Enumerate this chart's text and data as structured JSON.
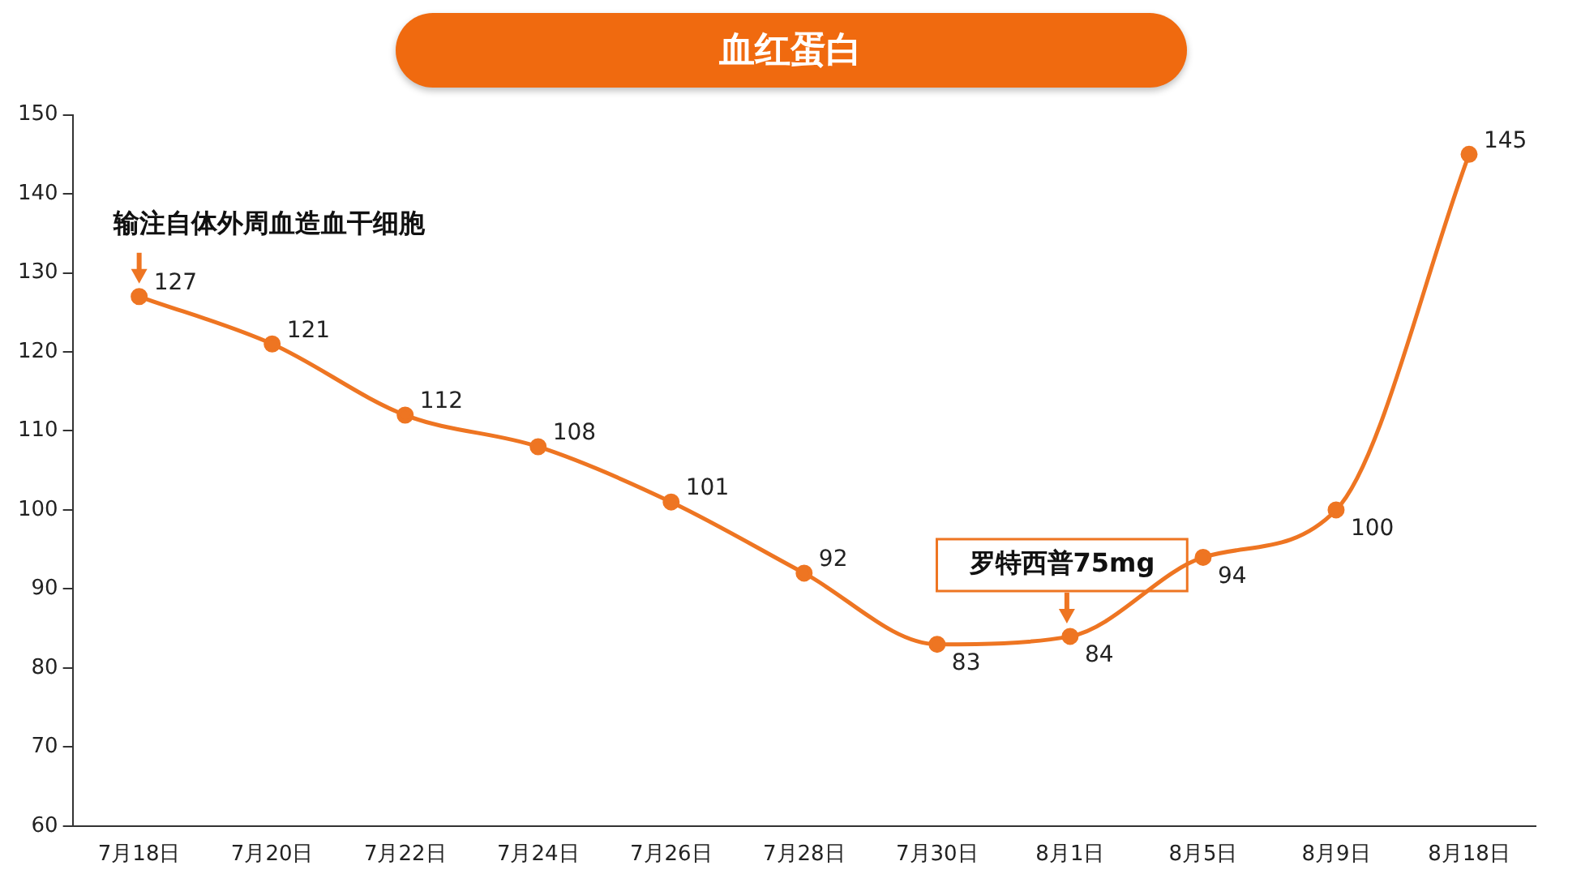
{
  "chart_data": {
    "type": "line",
    "title": "血红蛋白",
    "categories": [
      "7月18日",
      "7月20日",
      "7月22日",
      "7月24日",
      "7月26日",
      "7月28日",
      "7月30日",
      "8月1日",
      "8月5日",
      "8月9日",
      "8月18日"
    ],
    "series": [
      {
        "color": "#ee7522",
        "values": [
          127,
          121,
          112,
          108,
          101,
          92,
          83,
          84,
          94,
          100,
          145
        ]
      }
    ],
    "ylim": [
      60,
      150
    ],
    "yticks": [
      60,
      70,
      80,
      90,
      100,
      110,
      120,
      130,
      140,
      150
    ],
    "marker": "circle",
    "data_labels": true,
    "annotations": [
      {
        "text": "输注自体外周血造血干细胞",
        "x": "7月18日",
        "y": 127
      },
      {
        "text": "罗特西普75mg",
        "x": "8月1日",
        "y": 84
      }
    ]
  }
}
